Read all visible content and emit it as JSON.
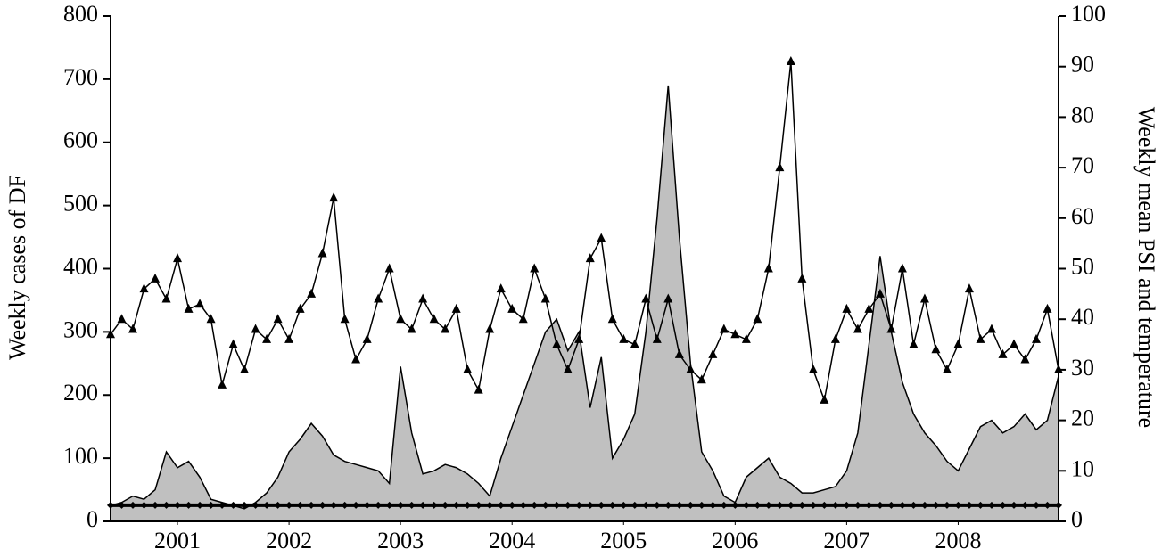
{
  "chart_data": {
    "type": "line",
    "y_label": "Weekly cases of DF",
    "y2_label": "Weekly mean PSI and temperature",
    "x": [
      2000.9,
      2001.0,
      2001.1,
      2001.2,
      2001.3,
      2001.4,
      2001.5,
      2001.6,
      2001.7,
      2001.8,
      2001.9,
      2002.0,
      2002.1,
      2002.2,
      2002.3,
      2002.4,
      2002.5,
      2002.6,
      2002.7,
      2002.8,
      2002.9,
      2003.0,
      2003.1,
      2003.2,
      2003.3,
      2003.4,
      2003.5,
      2003.6,
      2003.7,
      2003.8,
      2003.9,
      2004.0,
      2004.1,
      2004.2,
      2004.3,
      2004.4,
      2004.5,
      2004.6,
      2004.7,
      2004.8,
      2004.9,
      2005.0,
      2005.1,
      2005.2,
      2005.3,
      2005.4,
      2005.5,
      2005.6,
      2005.7,
      2005.8,
      2005.9,
      2006.0,
      2006.1,
      2006.2,
      2006.3,
      2006.4,
      2006.5,
      2006.6,
      2006.7,
      2006.8,
      2006.9,
      2007.0,
      2007.1,
      2007.2,
      2007.3,
      2007.4,
      2007.5,
      2007.6,
      2007.7,
      2007.8,
      2007.9,
      2008.0,
      2008.1,
      2008.2,
      2008.3,
      2008.4,
      2008.5,
      2008.6,
      2008.7,
      2008.8,
      2008.9,
      2009.0,
      2009.1,
      2009.2,
      2009.3,
      2009.4
    ],
    "xlim": [
      2000.9,
      2009.4
    ],
    "xticks": [
      {
        "value": 2001.5,
        "label": "2001"
      },
      {
        "value": 2002.5,
        "label": "2002"
      },
      {
        "value": 2003.5,
        "label": "2003"
      },
      {
        "value": 2004.5,
        "label": "2004"
      },
      {
        "value": 2005.5,
        "label": "2005"
      },
      {
        "value": 2006.5,
        "label": "2006"
      },
      {
        "value": 2007.5,
        "label": "2007"
      },
      {
        "value": 2008.5,
        "label": "2008"
      }
    ],
    "ylim": [
      0,
      800
    ],
    "yticks": [
      0,
      100,
      200,
      300,
      400,
      500,
      600,
      700,
      800
    ],
    "y2lim": [
      0,
      100
    ],
    "y2ticks": [
      0,
      10,
      20,
      30,
      40,
      50,
      60,
      70,
      80,
      90,
      100
    ],
    "series": [
      {
        "type": "area",
        "color": "#c0c0c0",
        "values": [
          25,
          30,
          40,
          35,
          50,
          110,
          85,
          95,
          70,
          35,
          30,
          25,
          20,
          30,
          45,
          70,
          110,
          130,
          155,
          135,
          105,
          95,
          90,
          85,
          80,
          60,
          245,
          140,
          75,
          80,
          90,
          85,
          75,
          60,
          40,
          100,
          150,
          200,
          250,
          300,
          320,
          270,
          300,
          180,
          260,
          100,
          130,
          170,
          300,
          480,
          690,
          450,
          250,
          110,
          80,
          40,
          30,
          70,
          85,
          100,
          70,
          60,
          45,
          45,
          50,
          55,
          80,
          140,
          280,
          420,
          300,
          220,
          170,
          140,
          120,
          95,
          80,
          115,
          150,
          160,
          140,
          150,
          170,
          145,
          160,
          230
        ]
      },
      {
        "type": "line",
        "axis": "y2",
        "color": "#000000",
        "marker": "triangle",
        "values": [
          37,
          40,
          38,
          46,
          48,
          44,
          52,
          42,
          43,
          40,
          27,
          35,
          30,
          38,
          36,
          40,
          36,
          42,
          45,
          53,
          64,
          40,
          32,
          36,
          44,
          50,
          40,
          38,
          44,
          40,
          38,
          42,
          30,
          26,
          38,
          46,
          42,
          40,
          50,
          44,
          35,
          30,
          36,
          52,
          56,
          40,
          36,
          35,
          44,
          36,
          44,
          33,
          30,
          28,
          33,
          38,
          37,
          36,
          40,
          50,
          70,
          91,
          48,
          30,
          24,
          36,
          42,
          38,
          42,
          45,
          38,
          50,
          35,
          44,
          34,
          30,
          35,
          46,
          36,
          38,
          33,
          35,
          32,
          36,
          42,
          30
        ]
      },
      {
        "type": "line",
        "axis": "y2",
        "color": "#000000",
        "marker": "diamond",
        "values": [
          3.2,
          3.2,
          3.2,
          3.2,
          3.2,
          3.2,
          3.2,
          3.2,
          3.2,
          3.2,
          3.2,
          3.2,
          3.2,
          3.2,
          3.2,
          3.2,
          3.2,
          3.2,
          3.2,
          3.2,
          3.2,
          3.2,
          3.2,
          3.2,
          3.2,
          3.2,
          3.2,
          3.2,
          3.2,
          3.2,
          3.2,
          3.2,
          3.2,
          3.2,
          3.2,
          3.2,
          3.2,
          3.2,
          3.2,
          3.2,
          3.2,
          3.2,
          3.2,
          3.2,
          3.2,
          3.2,
          3.2,
          3.2,
          3.2,
          3.2,
          3.2,
          3.2,
          3.2,
          3.2,
          3.2,
          3.2,
          3.2,
          3.2,
          3.2,
          3.2,
          3.2,
          3.2,
          3.2,
          3.2,
          3.2,
          3.2,
          3.2,
          3.2,
          3.2,
          3.2,
          3.2,
          3.2,
          3.2,
          3.2,
          3.2,
          3.2,
          3.2,
          3.2,
          3.2,
          3.2,
          3.2,
          3.2,
          3.2,
          3.2,
          3.2,
          3.2
        ]
      }
    ]
  }
}
